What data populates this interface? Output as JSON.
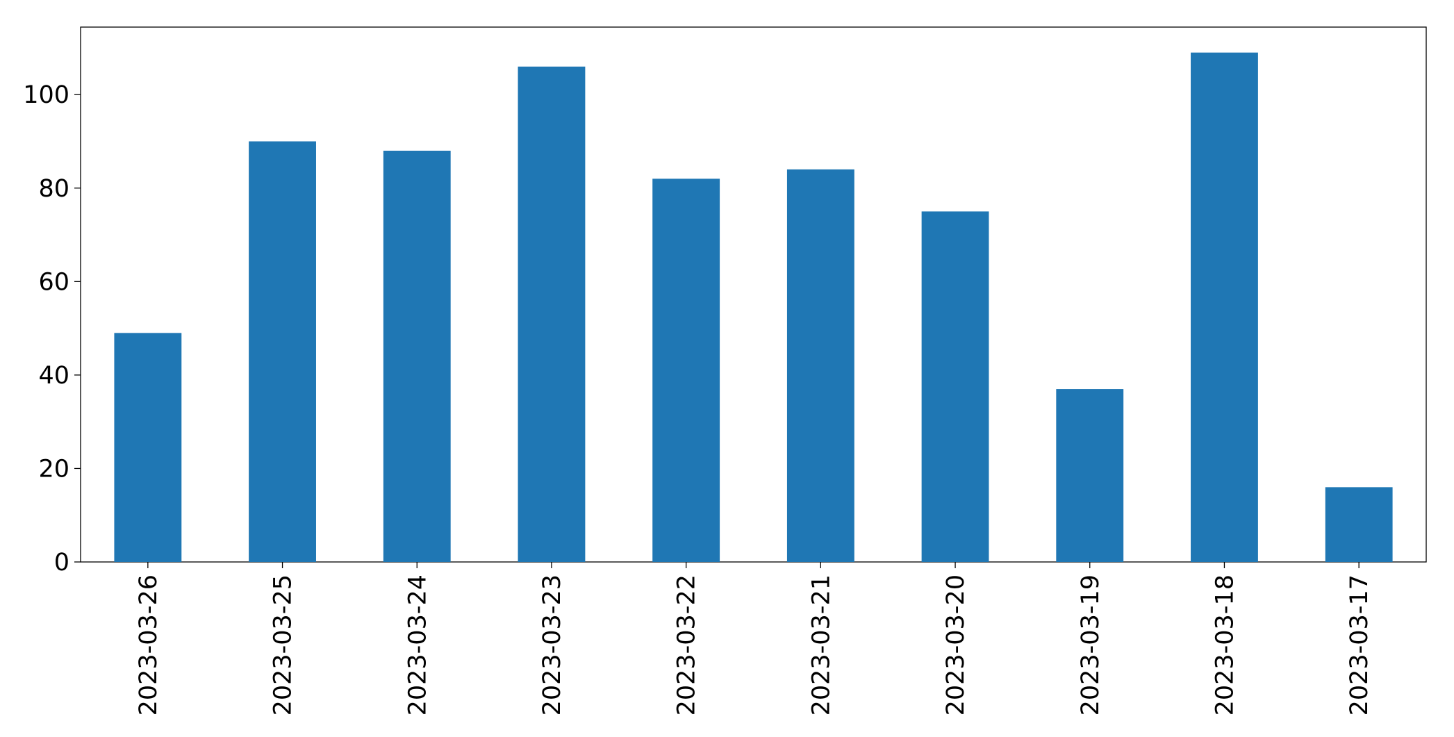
{
  "chart_data": {
    "type": "bar",
    "categories": [
      "2023-03-26",
      "2023-03-25",
      "2023-03-24",
      "2023-03-23",
      "2023-03-22",
      "2023-03-21",
      "2023-03-20",
      "2023-03-19",
      "2023-03-18",
      "2023-03-17"
    ],
    "values": [
      49,
      90,
      88,
      106,
      82,
      84,
      75,
      37,
      109,
      16
    ],
    "color": "#1f77b4",
    "ylim": [
      0,
      114.45
    ],
    "yticks": [
      0,
      20,
      40,
      60,
      80,
      100
    ],
    "grid": false
  }
}
